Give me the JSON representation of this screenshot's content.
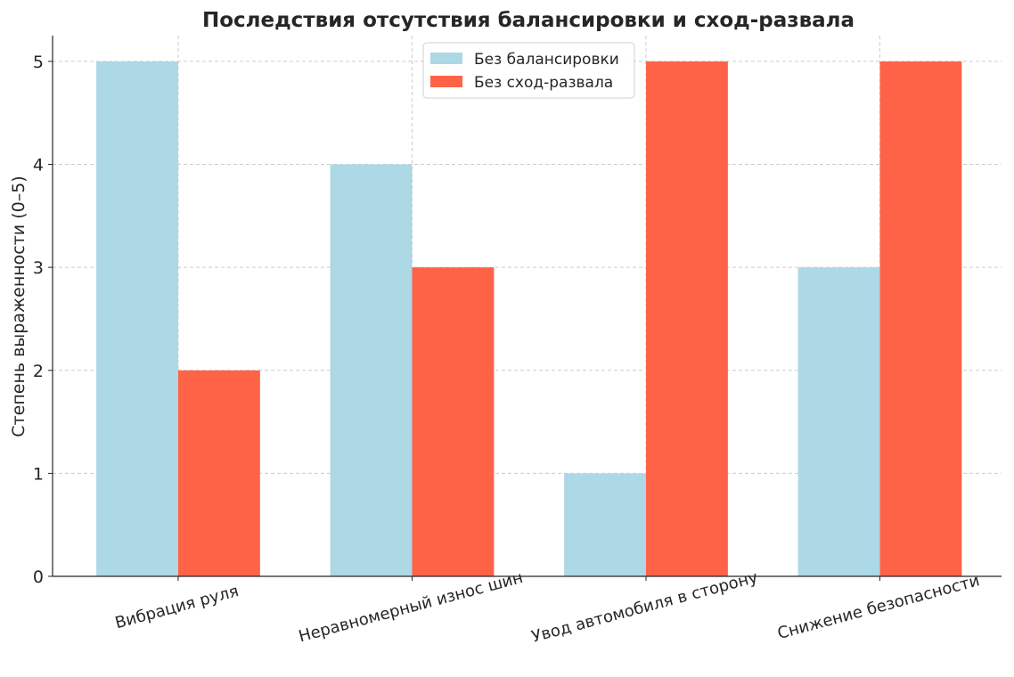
{
  "chart_data": {
    "type": "bar",
    "title": "Последствия отсутствия балансировки и сход-развала",
    "xlabel": "",
    "ylabel": "Степень выраженности (0–5)",
    "categories": [
      "Вибрация руля",
      "Неравномерный износ шин",
      "Увод автомобиля в сторону",
      "Снижение безопасности"
    ],
    "series": [
      {
        "name": "Без балансировки",
        "values": [
          5,
          4,
          1,
          3
        ],
        "color": "#add8e6"
      },
      {
        "name": "Без сход-развала",
        "values": [
          2,
          3,
          5,
          5
        ],
        "color": "#ff6347"
      }
    ],
    "ylim": [
      0,
      5.25
    ],
    "yticks": [
      "0",
      "1",
      "2",
      "3",
      "4",
      "5"
    ],
    "grid": true,
    "legend": "top-center"
  }
}
